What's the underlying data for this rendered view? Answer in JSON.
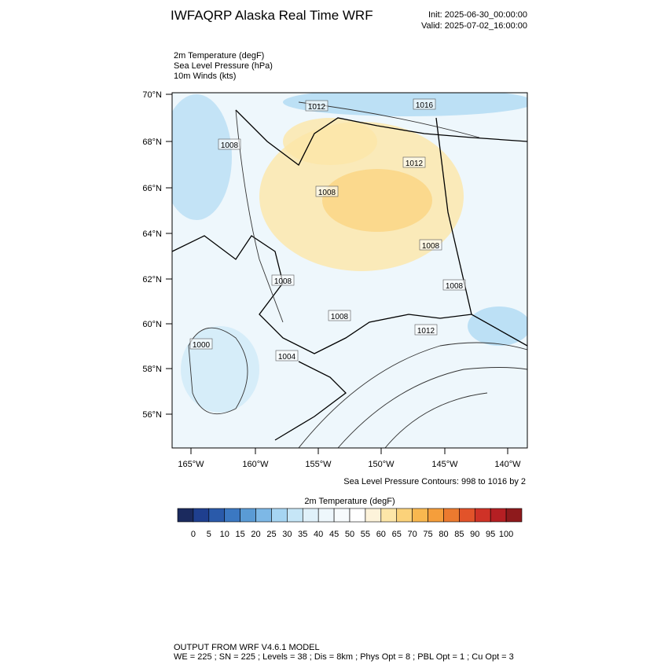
{
  "header": {
    "title": "IWFAQRP Alaska Real Time WRF",
    "init": "Init: 2025-06-30_00:00:00",
    "valid": "Valid: 2025-07-02_16:00:00"
  },
  "fields": [
    "2m Temperature   (degF)",
    "Sea Level Pressure   (hPa)",
    "10m Winds   (kts)"
  ],
  "lat_ticks": [
    "70°N",
    "68°N",
    "66°N",
    "64°N",
    "62°N",
    "60°N",
    "58°N",
    "56°N"
  ],
  "lon_ticks": [
    "165°W",
    "160°W",
    "155°W",
    "150°W",
    "145°W",
    "140°W"
  ],
  "contour_labels": [
    "1012",
    "1016",
    "1008",
    "1012",
    "1008",
    "1008",
    "1008",
    "1008",
    "1008",
    "1012",
    "1000",
    "1004"
  ],
  "contour_note": "Sea Level Pressure Contours: 998 to 1016 by 2",
  "colorbar": {
    "title": "2m Temperature  (degF)",
    "colors": [
      "#1b2a5e",
      "#1f3f8f",
      "#2a5aaa",
      "#3b78c2",
      "#5a9bd5",
      "#7db8e6",
      "#a6d5f2",
      "#c6e6f7",
      "#e0f1fa",
      "#eef7fc",
      "#f7fbfd",
      "#ffffff",
      "#fdf3da",
      "#fde6a8",
      "#fbd27a",
      "#f9b84f",
      "#f59e3b",
      "#ec7a2f",
      "#e2532a",
      "#cf3227",
      "#b51f23",
      "#8e1a1c"
    ],
    "labels": [
      0,
      5,
      10,
      15,
      20,
      25,
      30,
      35,
      40,
      45,
      50,
      55,
      60,
      65,
      70,
      75,
      80,
      85,
      90,
      95,
      100
    ]
  },
  "footer": [
    "OUTPUT FROM WRF V4.6.1 MODEL",
    "WE = 225 ; SN = 225 ; Levels = 38 ; Dis = 8km ; Phys Opt = 8 ; PBL Opt = 1 ; Cu Opt = 3"
  ]
}
